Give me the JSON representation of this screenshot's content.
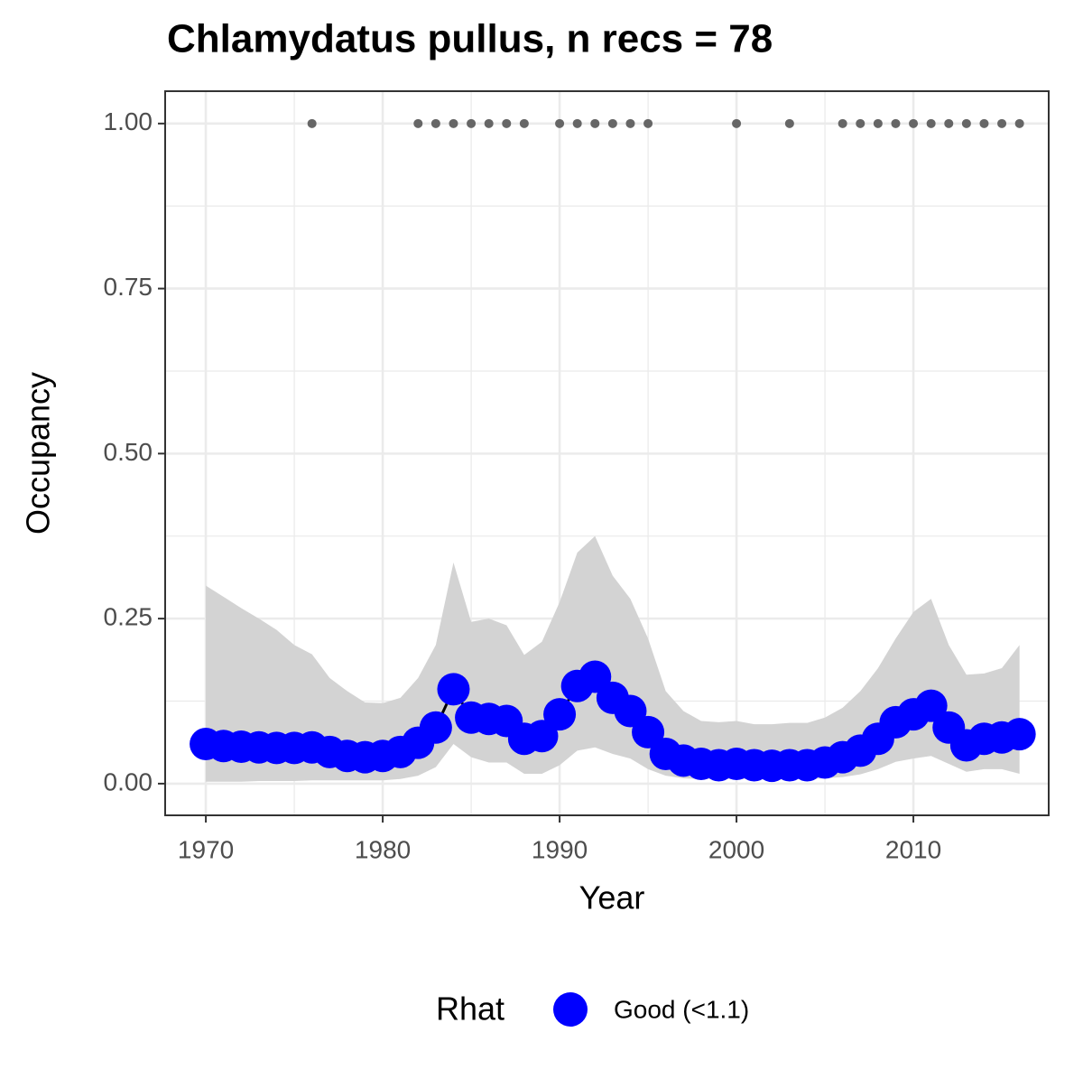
{
  "chart_data": {
    "type": "line",
    "title": "Chlamydatus pullus, n recs = 78",
    "x_label": "Year",
    "y_label": "Occupancy",
    "x": [
      1970,
      1971,
      1972,
      1973,
      1974,
      1975,
      1976,
      1977,
      1978,
      1979,
      1980,
      1981,
      1982,
      1983,
      1984,
      1985,
      1986,
      1987,
      1988,
      1989,
      1990,
      1991,
      1992,
      1993,
      1994,
      1995,
      1996,
      1997,
      1998,
      1999,
      2000,
      2001,
      2002,
      2003,
      2004,
      2005,
      2006,
      2007,
      2008,
      2009,
      2010,
      2011,
      2012,
      2013,
      2014,
      2015,
      2016
    ],
    "series": [
      {
        "name": "Good (<1.1)",
        "color": "#0000ff",
        "values": [
          0.06,
          0.057,
          0.056,
          0.055,
          0.054,
          0.054,
          0.055,
          0.048,
          0.042,
          0.04,
          0.042,
          0.048,
          0.062,
          0.085,
          0.143,
          0.1,
          0.098,
          0.095,
          0.068,
          0.072,
          0.105,
          0.148,
          0.162,
          0.13,
          0.11,
          0.078,
          0.045,
          0.035,
          0.03,
          0.028,
          0.03,
          0.028,
          0.027,
          0.028,
          0.028,
          0.032,
          0.04,
          0.05,
          0.068,
          0.093,
          0.105,
          0.118,
          0.085,
          0.058,
          0.068,
          0.07,
          0.075
        ]
      }
    ],
    "upper": [
      0.3,
      0.283,
      0.266,
      0.25,
      0.233,
      0.21,
      0.196,
      0.16,
      0.14,
      0.123,
      0.122,
      0.13,
      0.16,
      0.21,
      0.335,
      0.245,
      0.25,
      0.24,
      0.195,
      0.215,
      0.275,
      0.35,
      0.375,
      0.315,
      0.28,
      0.22,
      0.14,
      0.11,
      0.095,
      0.093,
      0.095,
      0.09,
      0.09,
      0.092,
      0.092,
      0.1,
      0.115,
      0.14,
      0.175,
      0.22,
      0.26,
      0.28,
      0.21,
      0.165,
      0.167,
      0.175,
      0.21
    ],
    "lower": [
      0.003,
      0.003,
      0.003,
      0.004,
      0.004,
      0.004,
      0.005,
      0.005,
      0.005,
      0.005,
      0.005,
      0.007,
      0.012,
      0.025,
      0.06,
      0.04,
      0.032,
      0.032,
      0.015,
      0.015,
      0.028,
      0.05,
      0.055,
      0.045,
      0.038,
      0.022,
      0.012,
      0.008,
      0.007,
      0.007,
      0.007,
      0.007,
      0.007,
      0.007,
      0.007,
      0.008,
      0.01,
      0.014,
      0.022,
      0.033,
      0.038,
      0.042,
      0.03,
      0.018,
      0.022,
      0.022,
      0.015
    ],
    "detections": {
      "color": "#666666",
      "x": [
        1976,
        1982,
        1983,
        1984,
        1985,
        1986,
        1987,
        1988,
        1990,
        1991,
        1992,
        1993,
        1994,
        1995,
        2000,
        2003,
        2006,
        2007,
        2008,
        2009,
        2010,
        2011,
        2012,
        2013,
        2014,
        2015,
        2016
      ],
      "values": [
        1,
        1,
        1,
        1,
        1,
        1,
        1,
        1,
        1,
        1,
        1,
        1,
        1,
        1,
        1,
        1,
        1,
        1,
        1,
        1,
        1,
        1,
        1,
        1,
        1,
        1,
        1
      ]
    },
    "ribbon_color": "#d3d3d3",
    "xlim": [
      1967.7,
      2017.65
    ],
    "xticks": [
      1970,
      1980,
      1990,
      2000,
      2010
    ],
    "ylim": [
      -0.048,
      1.049
    ],
    "yticks": [
      {
        "value": 0,
        "label": "0.00"
      },
      {
        "value": 0.25,
        "label": "0.25"
      },
      {
        "value": 0.5,
        "label": "0.50"
      },
      {
        "value": 0.75,
        "label": "0.75"
      },
      {
        "value": 1,
        "label": "1.00"
      }
    ],
    "grid": true,
    "legend_title": "Rhat",
    "legend": "bottom"
  }
}
